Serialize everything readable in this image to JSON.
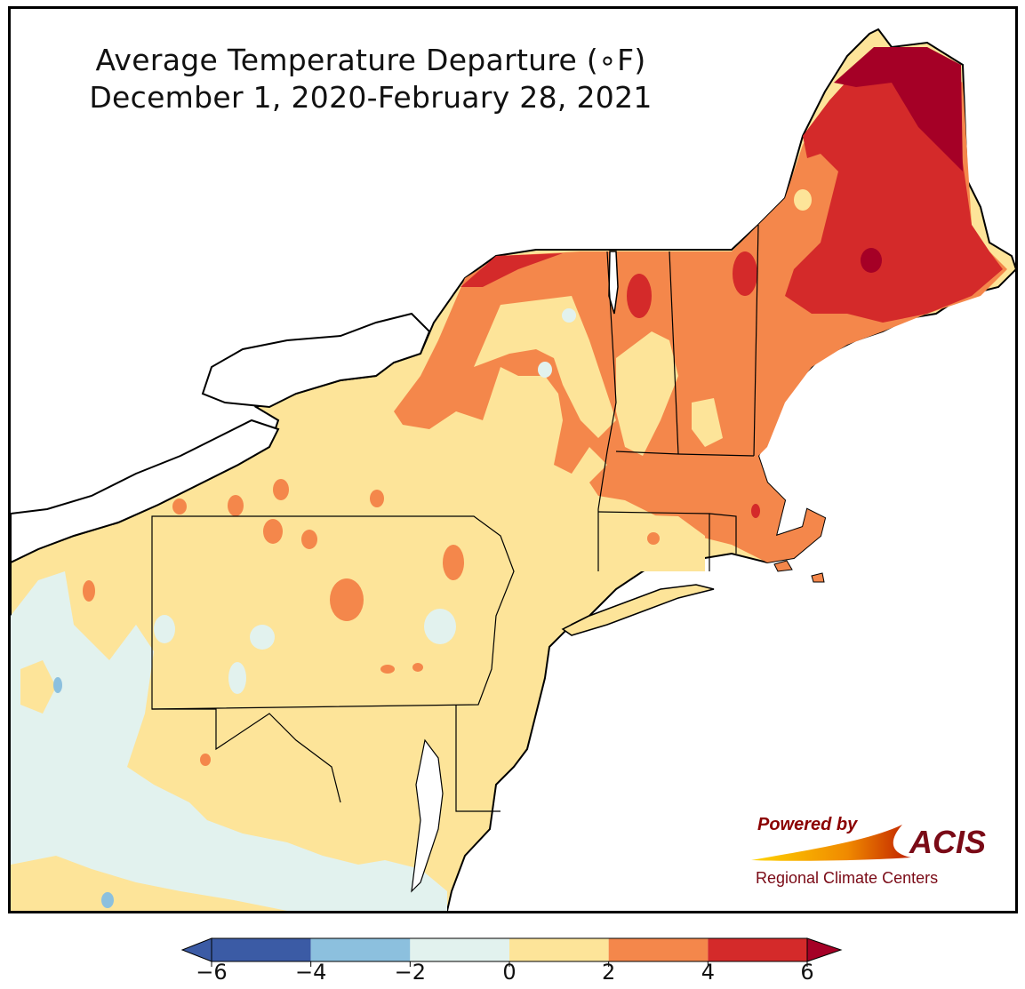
{
  "title": {
    "line1": "Average Temperature Departure (∘F)",
    "line2": "December 1, 2020-February 28, 2021"
  },
  "logo": {
    "powered_by": "Powered by",
    "brand": "ACIS",
    "subtitle": "Regional Climate Centers"
  },
  "legend": {
    "ticks": [
      "−6",
      "−4",
      "−2",
      "0",
      "2",
      "4",
      "6"
    ],
    "bins": [
      {
        "range": [
          -6,
          -4
        ],
        "color": "#3b5ba5"
      },
      {
        "range": [
          -4,
          -2
        ],
        "color": "#8cc0de"
      },
      {
        "range": [
          -2,
          0
        ],
        "color": "#e2f2ee"
      },
      {
        "range": [
          0,
          2
        ],
        "color": "#fde499"
      },
      {
        "range": [
          2,
          4
        ],
        "color": "#f4874b"
      },
      {
        "range": [
          4,
          6
        ],
        "color": "#d42a2a"
      }
    ],
    "under_color": "#3b5ba5",
    "over_color": "#a50026"
  },
  "colors": {
    "darkest_red": "#a50026",
    "land_outline": "#000000",
    "county_lines": "#9a9a9a"
  }
}
